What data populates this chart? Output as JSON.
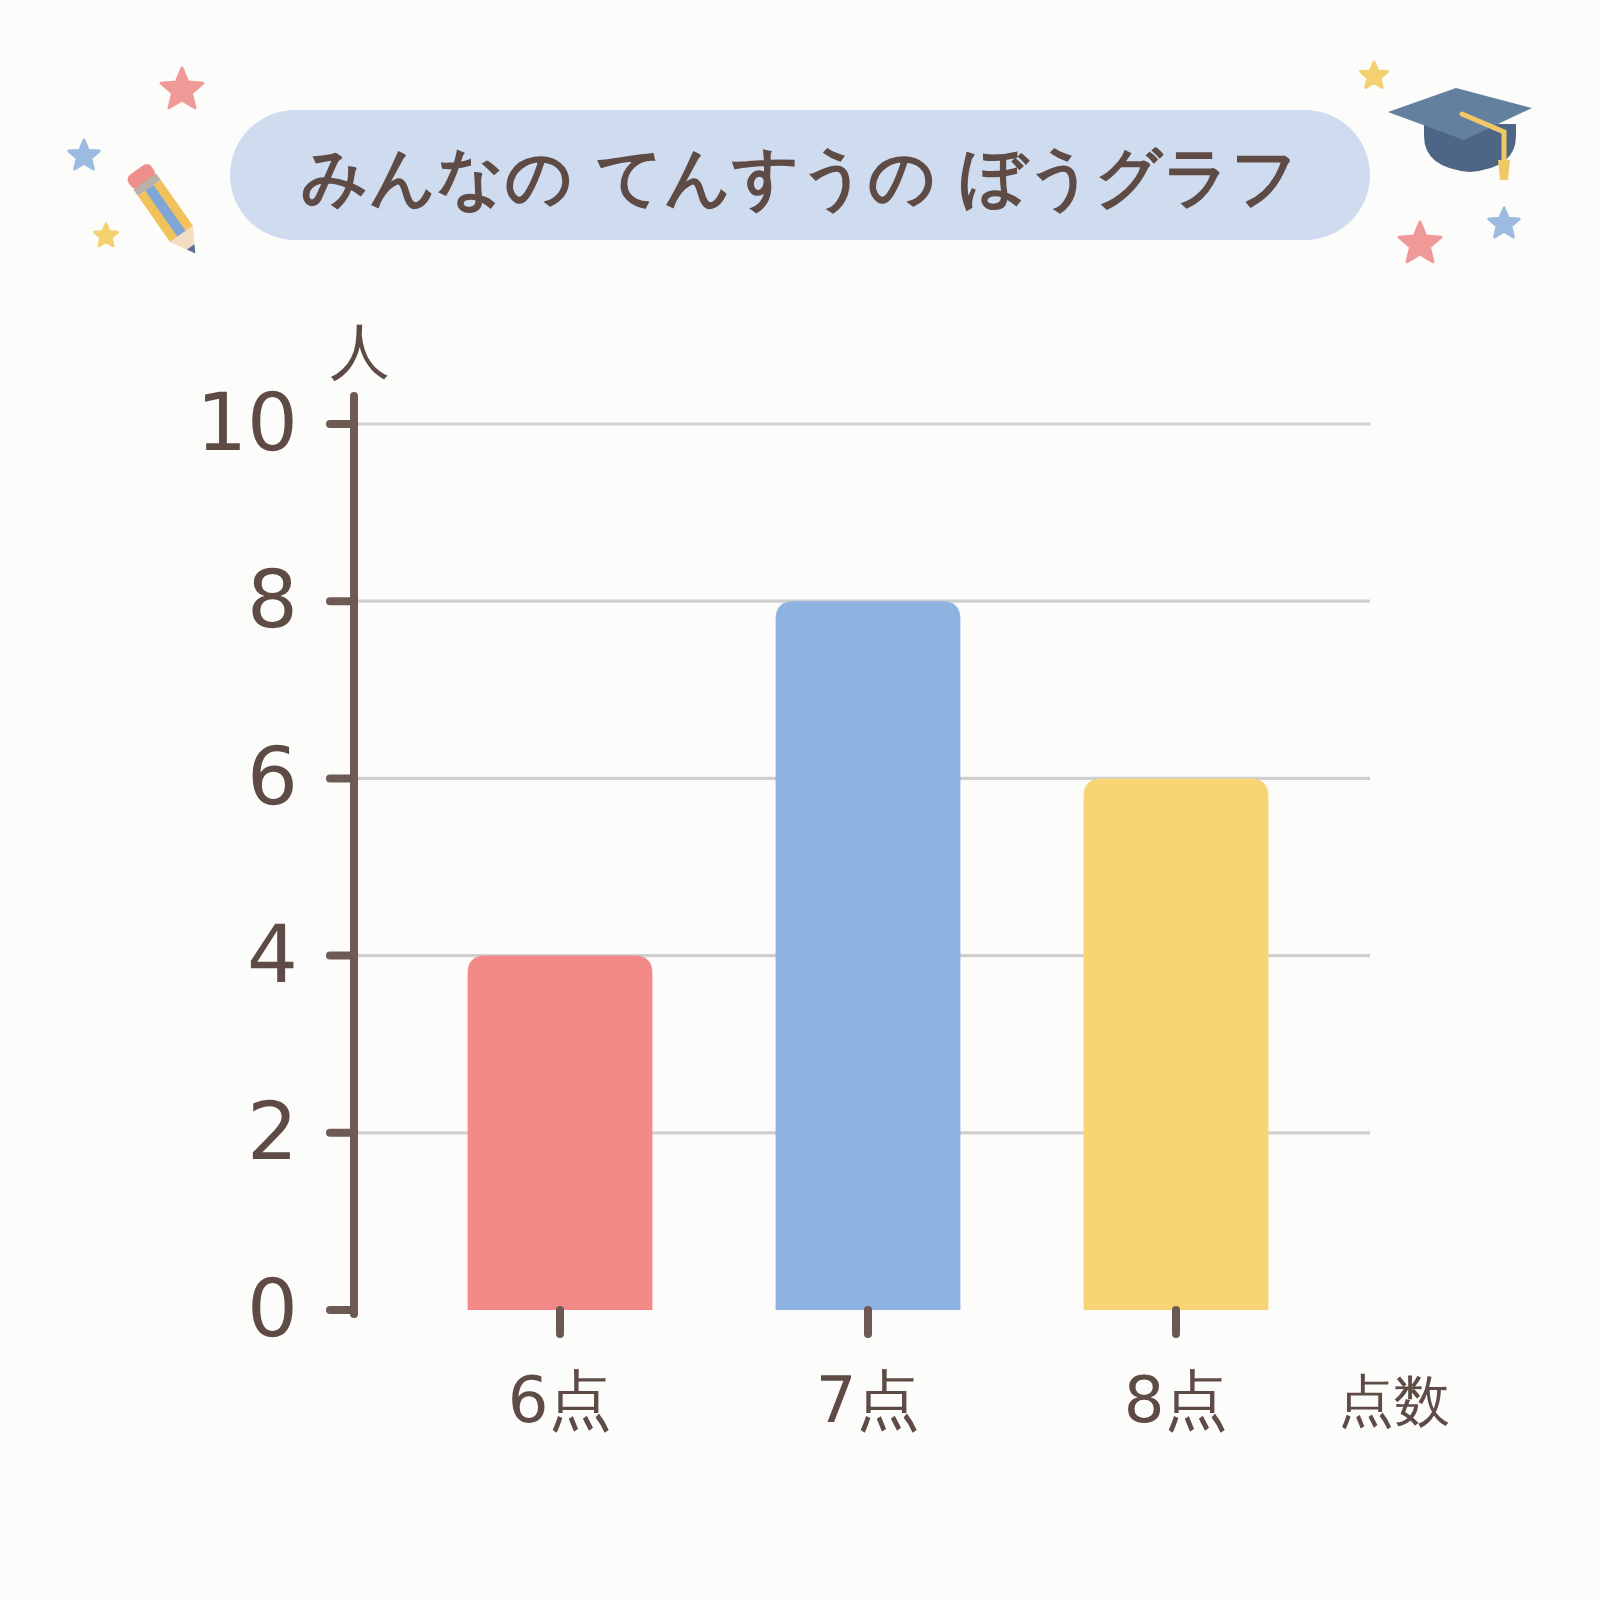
{
  "chart_data": {
    "type": "bar",
    "title": "みんなの てんすうの ぼうグラフ",
    "xlabel": "点数",
    "ylabel": "人",
    "categories": [
      "6点",
      "7点",
      "8点"
    ],
    "values": [
      4,
      8,
      6
    ],
    "colors": [
      "#f48a88",
      "#8fb3e0",
      "#f7d574"
    ],
    "ylim": [
      0,
      10
    ],
    "yticks": [
      0,
      2,
      4,
      6,
      8,
      10
    ],
    "grid": "y"
  }
}
